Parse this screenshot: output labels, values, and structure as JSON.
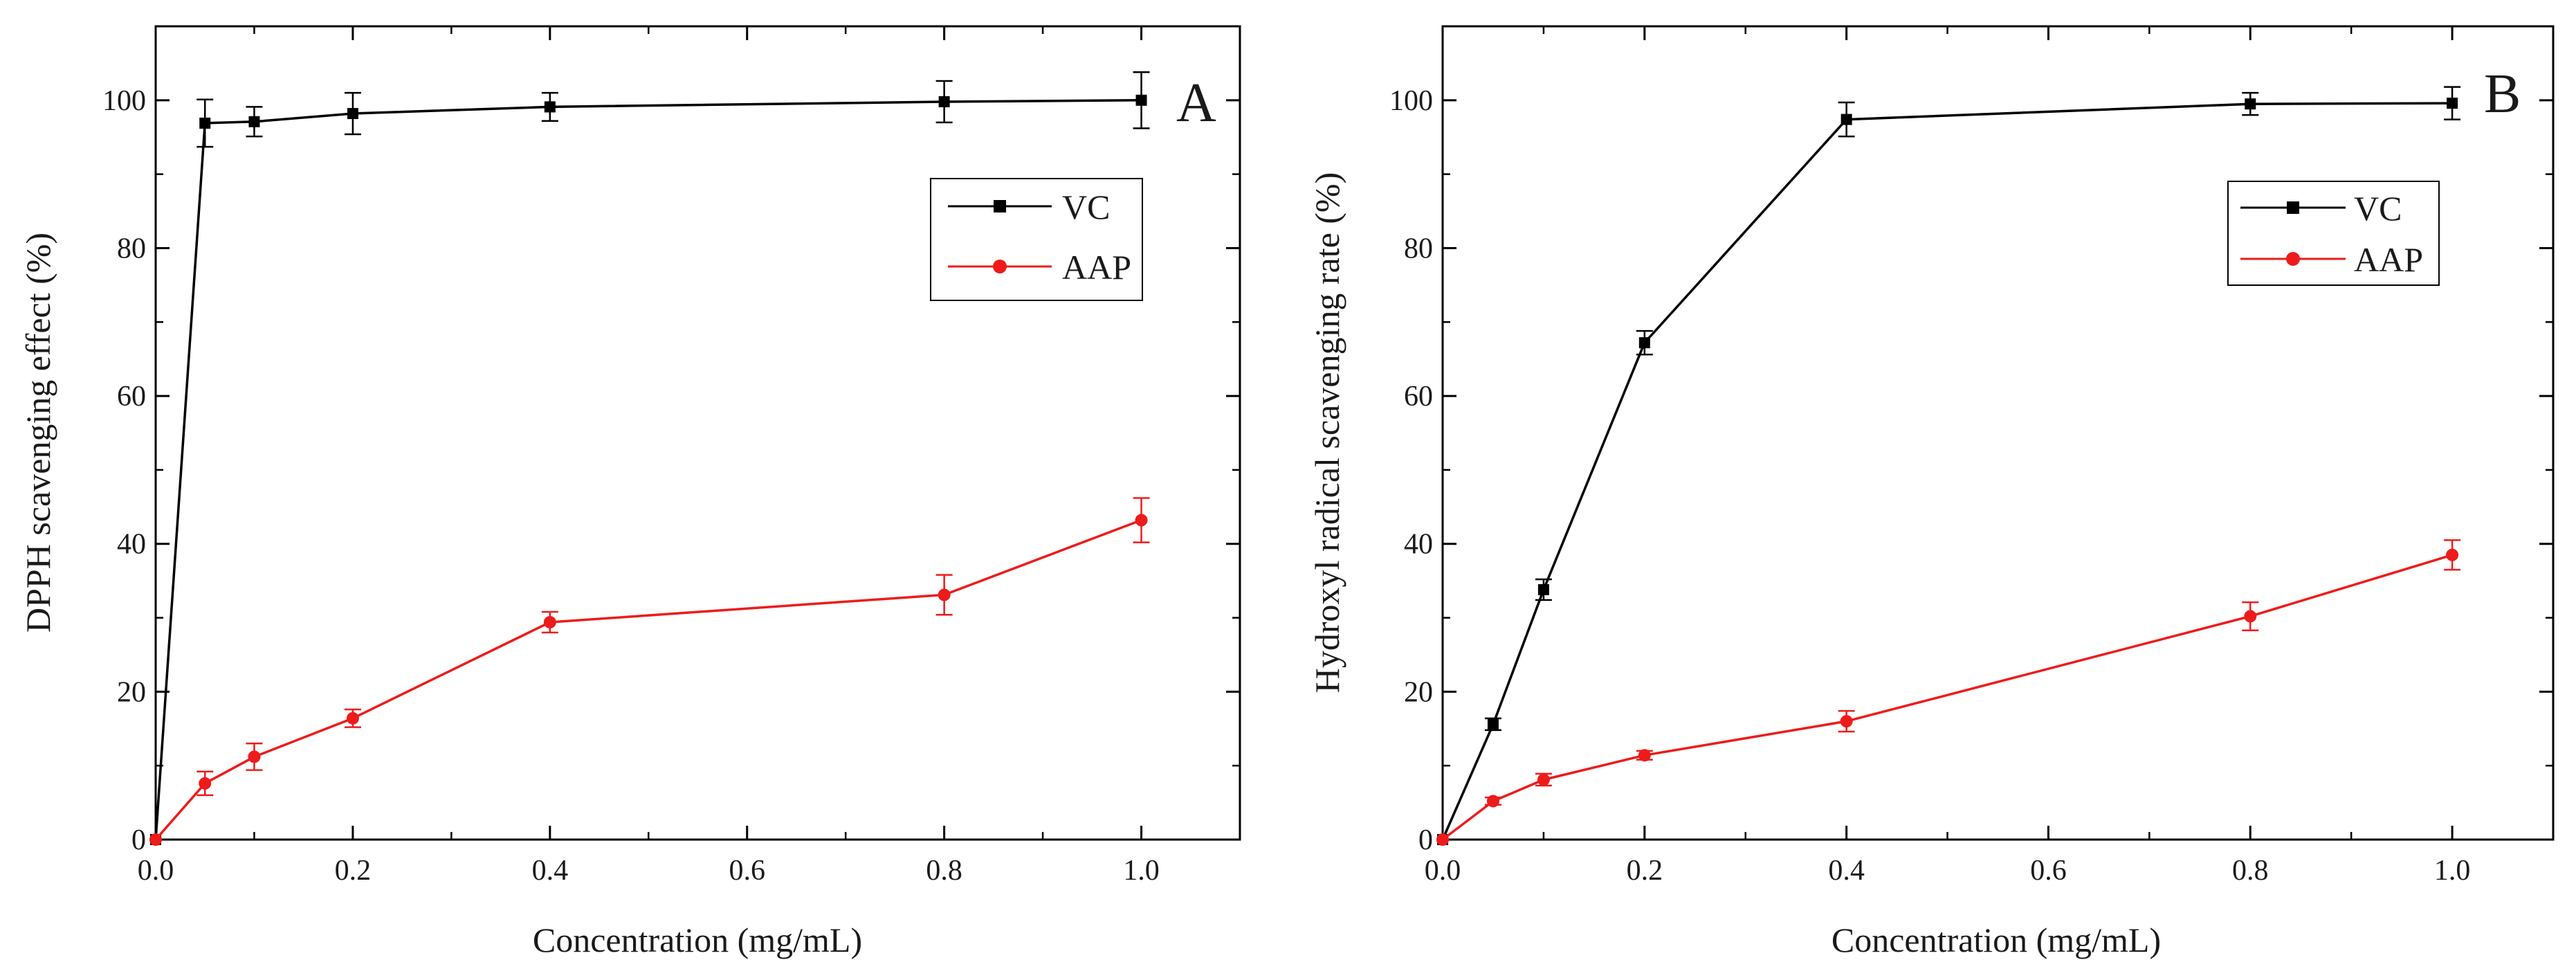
{
  "chart_data": [
    {
      "type": "line",
      "panel_label": "A",
      "xlabel": "Concentration (mg/mL)",
      "ylabel": "DPPH scavenging effect (%)",
      "xlim": [
        0.0,
        1.1
      ],
      "ylim": [
        0,
        110
      ],
      "xticks": [
        "0.0",
        "0.2",
        "0.4",
        "0.6",
        "0.8",
        "1.0"
      ],
      "yticks": [
        "0",
        "20",
        "40",
        "60",
        "80",
        "100"
      ],
      "legend": "top-right",
      "grid": false,
      "x": [
        0,
        0.05,
        0.1,
        0.2,
        0.4,
        0.8,
        1.0
      ],
      "series": [
        {
          "name": "VC",
          "color": "#000000",
          "marker": "square",
          "values": [
            0,
            96.9,
            97.1,
            98.2,
            99.1,
            99.8,
            100.0
          ],
          "errors": [
            0,
            3.2,
            2.0,
            2.8,
            1.9,
            2.8,
            3.8
          ]
        },
        {
          "name": "AAP",
          "color": "#ee1b1b",
          "marker": "circle",
          "values": [
            0,
            7.6,
            11.2,
            16.4,
            29.4,
            33.1,
            43.2
          ],
          "errors": [
            0,
            1.6,
            1.8,
            1.2,
            1.4,
            2.7,
            3.0
          ]
        }
      ]
    },
    {
      "type": "line",
      "panel_label": "B",
      "xlabel": "Concentration (mg/mL)",
      "ylabel": "Hydroxyl radical scavenging rate (%)",
      "xlim": [
        0.0,
        1.1
      ],
      "ylim": [
        0,
        110
      ],
      "xticks": [
        "0.0",
        "0.2",
        "0.4",
        "0.6",
        "0.8",
        "1.0"
      ],
      "yticks": [
        "0",
        "20",
        "40",
        "60",
        "80",
        "100"
      ],
      "legend": "top-right",
      "grid": false,
      "x": [
        0,
        0.05,
        0.1,
        0.2,
        0.4,
        0.8,
        1.0
      ],
      "series": [
        {
          "name": "VC",
          "color": "#000000",
          "marker": "square",
          "values": [
            0,
            15.6,
            33.8,
            67.2,
            97.4,
            99.5,
            99.6
          ],
          "errors": [
            0,
            0.8,
            1.4,
            1.6,
            2.3,
            1.5,
            2.2
          ]
        },
        {
          "name": "AAP",
          "color": "#ee1b1b",
          "marker": "circle",
          "values": [
            0,
            5.2,
            8.1,
            11.4,
            16.0,
            30.2,
            38.5
          ],
          "errors": [
            0,
            0.5,
            0.8,
            0.6,
            1.4,
            1.9,
            2.0
          ]
        }
      ]
    }
  ]
}
